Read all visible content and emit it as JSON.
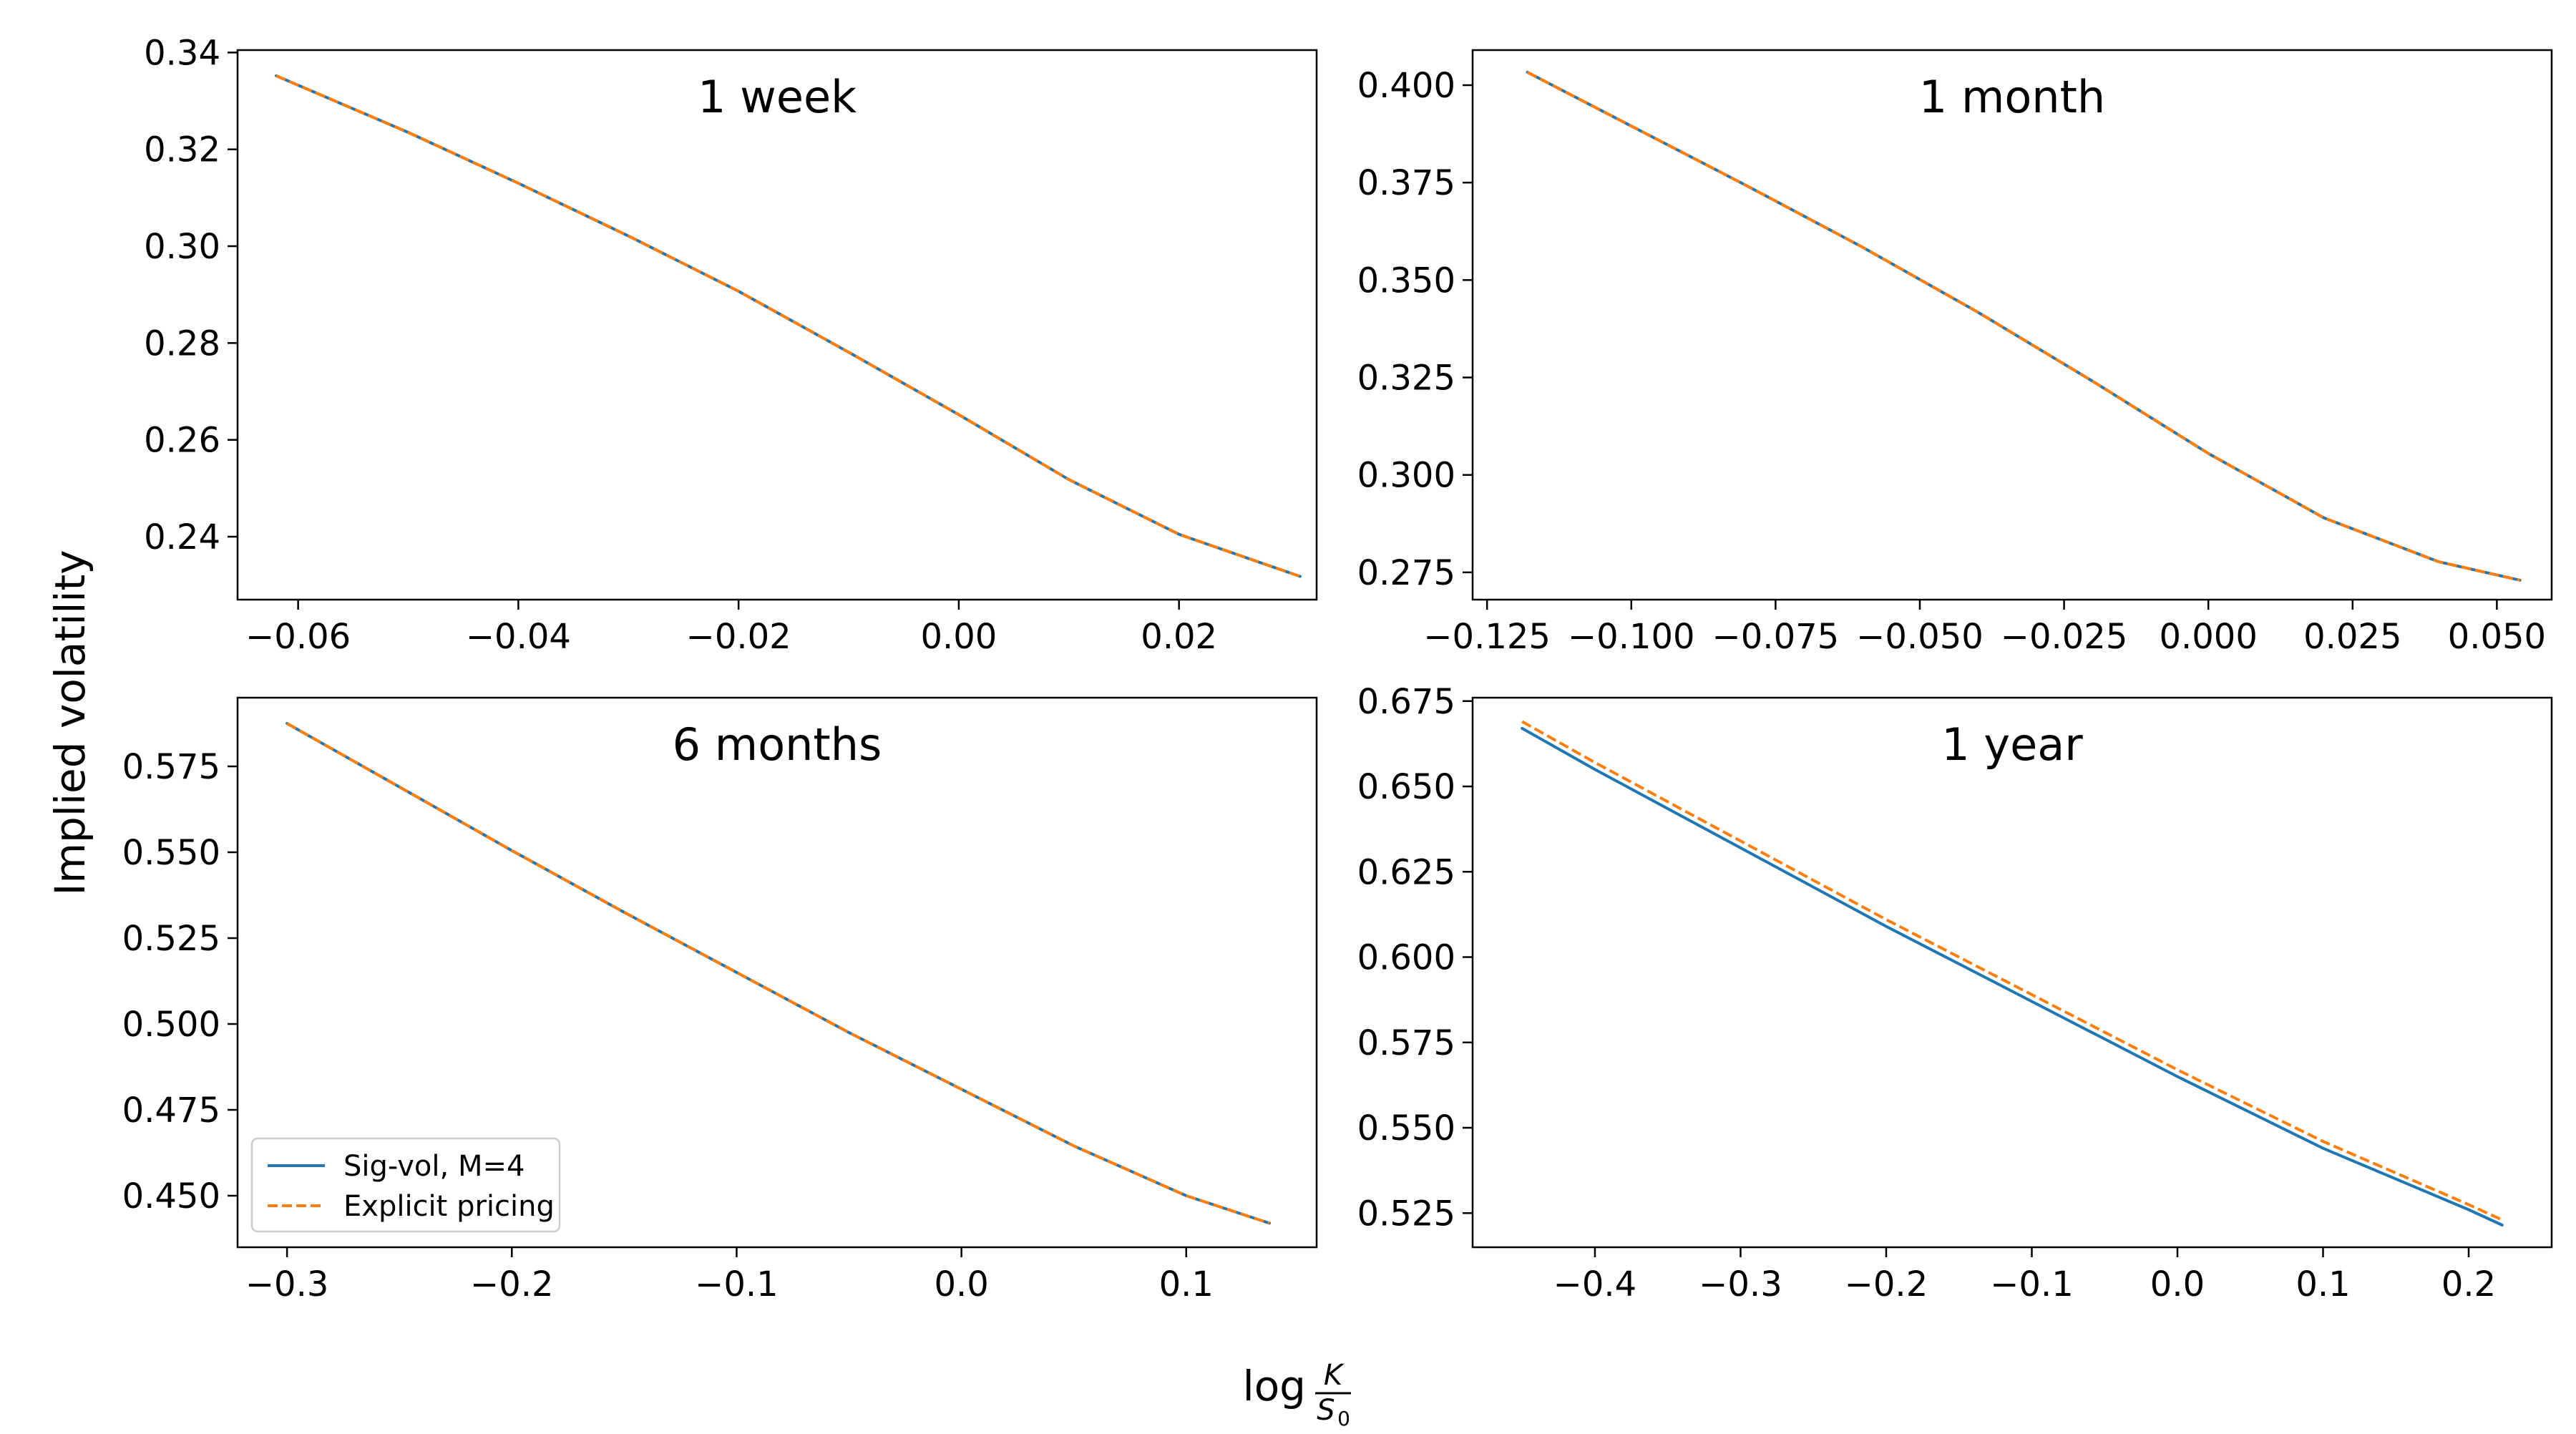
{
  "figure": {
    "ylabel": "Implied volatility",
    "xlabel": {
      "main": "log",
      "numerator": "K",
      "denominator": "S",
      "subscript": "0"
    }
  },
  "colors": {
    "sig_vol": "#1f77b4",
    "explicit": "#ff7f0e",
    "frame": "#000000",
    "background": "#ffffff"
  },
  "legend": {
    "entries": [
      "Sig-vol, M=4",
      "Explicit pricing"
    ],
    "location": "lower-left",
    "panel": "6 months"
  },
  "chart_data": [
    {
      "type": "line",
      "title": "1 week",
      "xlim": [
        -0.0655,
        0.0325
      ],
      "ylim": [
        0.227,
        0.3405
      ],
      "xticks": [
        -0.06,
        -0.04,
        -0.02,
        0.0,
        0.02
      ],
      "xtick_labels": [
        "−0.06",
        "−0.04",
        "−0.02",
        "0.00",
        "0.02"
      ],
      "yticks": [
        0.24,
        0.26,
        0.28,
        0.3,
        0.32,
        0.34
      ],
      "ytick_labels": [
        "0.24",
        "0.26",
        "0.28",
        "0.30",
        "0.32",
        "0.34"
      ],
      "series": [
        {
          "name": "Sig-vol, M=4",
          "style": "solid",
          "x": [
            -0.062,
            -0.05,
            -0.04,
            -0.03,
            -0.02,
            -0.01,
            0.0,
            0.01,
            0.02,
            0.031
          ],
          "y": [
            0.3352,
            0.3235,
            0.313,
            0.3021,
            0.2907,
            0.2781,
            0.2652,
            0.2518,
            0.2405,
            0.2318
          ]
        },
        {
          "name": "Explicit pricing",
          "style": "dashed",
          "x": [
            -0.062,
            -0.05,
            -0.04,
            -0.03,
            -0.02,
            -0.01,
            0.0,
            0.01,
            0.02,
            0.031
          ],
          "y": [
            0.3352,
            0.3235,
            0.313,
            0.3021,
            0.2907,
            0.2781,
            0.2652,
            0.2518,
            0.2405,
            0.2318
          ]
        }
      ]
    },
    {
      "type": "line",
      "title": "1 month",
      "xlim": [
        -0.1275,
        0.0595
      ],
      "ylim": [
        0.268,
        0.409
      ],
      "xticks": [
        -0.125,
        -0.1,
        -0.075,
        -0.05,
        -0.025,
        0.0,
        0.025,
        0.05
      ],
      "xtick_labels": [
        "−0.125",
        "−0.100",
        "−0.075",
        "−0.050",
        "−0.025",
        "0.000",
        "0.025",
        "0.050"
      ],
      "yticks": [
        0.275,
        0.3,
        0.325,
        0.35,
        0.375,
        0.4
      ],
      "ytick_labels": [
        "0.275",
        "0.300",
        "0.325",
        "0.350",
        "0.375",
        "0.400"
      ],
      "series": [
        {
          "name": "Sig-vol, M=4",
          "style": "solid",
          "x": [
            -0.118,
            -0.1,
            -0.08,
            -0.06,
            -0.04,
            -0.02,
            0.0,
            0.02,
            0.04,
            0.054
          ],
          "y": [
            0.4033,
            0.3895,
            0.3742,
            0.3585,
            0.3418,
            0.324,
            0.3055,
            0.289,
            0.2777,
            0.273
          ]
        },
        {
          "name": "Explicit pricing",
          "style": "dashed",
          "x": [
            -0.118,
            -0.1,
            -0.08,
            -0.06,
            -0.04,
            -0.02,
            0.0,
            0.02,
            0.04,
            0.054
          ],
          "y": [
            0.4033,
            0.3895,
            0.3742,
            0.3585,
            0.3418,
            0.324,
            0.3055,
            0.289,
            0.2777,
            0.273
          ]
        }
      ]
    },
    {
      "type": "line",
      "title": "6 months",
      "xlim": [
        -0.322,
        0.158
      ],
      "ylim": [
        0.435,
        0.595
      ],
      "xticks": [
        -0.3,
        -0.2,
        -0.1,
        0.0,
        0.1
      ],
      "xtick_labels": [
        "−0.3",
        "−0.2",
        "−0.1",
        "0.0",
        "0.1"
      ],
      "yticks": [
        0.45,
        0.475,
        0.5,
        0.525,
        0.55,
        0.575
      ],
      "ytick_labels": [
        "0.450",
        "0.475",
        "0.500",
        "0.525",
        "0.550",
        "0.575"
      ],
      "series": [
        {
          "name": "Sig-vol, M=4",
          "style": "solid",
          "x": [
            -0.3,
            -0.25,
            -0.2,
            -0.15,
            -0.1,
            -0.05,
            0.0,
            0.05,
            0.1,
            0.137
          ],
          "y": [
            0.5875,
            0.569,
            0.5505,
            0.5325,
            0.515,
            0.4975,
            0.481,
            0.4645,
            0.45,
            0.442
          ]
        },
        {
          "name": "Explicit pricing",
          "style": "dashed",
          "x": [
            -0.3,
            -0.25,
            -0.2,
            -0.15,
            -0.1,
            -0.05,
            0.0,
            0.05,
            0.1,
            0.137
          ],
          "y": [
            0.5875,
            0.569,
            0.5505,
            0.5325,
            0.515,
            0.4975,
            0.481,
            0.4645,
            0.45,
            0.442
          ]
        }
      ]
    },
    {
      "type": "line",
      "title": "1 year",
      "xlim": [
        -0.484,
        0.257
      ],
      "ylim": [
        0.515,
        0.676
      ],
      "xticks": [
        -0.4,
        -0.3,
        -0.2,
        -0.1,
        0.0,
        0.1,
        0.2
      ],
      "xtick_labels": [
        "−0.4",
        "−0.3",
        "−0.2",
        "−0.1",
        "0.0",
        "0.1",
        "0.2"
      ],
      "yticks": [
        0.525,
        0.55,
        0.575,
        0.6,
        0.625,
        0.65,
        0.675
      ],
      "ytick_labels": [
        "0.525",
        "0.550",
        "0.575",
        "0.600",
        "0.625",
        "0.650",
        "0.675"
      ],
      "series": [
        {
          "name": "Sig-vol, M=4",
          "style": "solid",
          "x": [
            -0.45,
            -0.4,
            -0.3,
            -0.2,
            -0.1,
            0.0,
            0.1,
            0.2,
            0.223
          ],
          "y": [
            0.667,
            0.655,
            0.632,
            0.609,
            0.587,
            0.565,
            0.544,
            0.526,
            0.5215
          ]
        },
        {
          "name": "Explicit pricing",
          "style": "dashed",
          "x": [
            -0.45,
            -0.4,
            -0.3,
            -0.2,
            -0.1,
            0.0,
            0.1,
            0.2,
            0.223
          ],
          "y": [
            0.669,
            0.657,
            0.634,
            0.611,
            0.589,
            0.567,
            0.546,
            0.5275,
            0.523
          ]
        }
      ]
    }
  ]
}
